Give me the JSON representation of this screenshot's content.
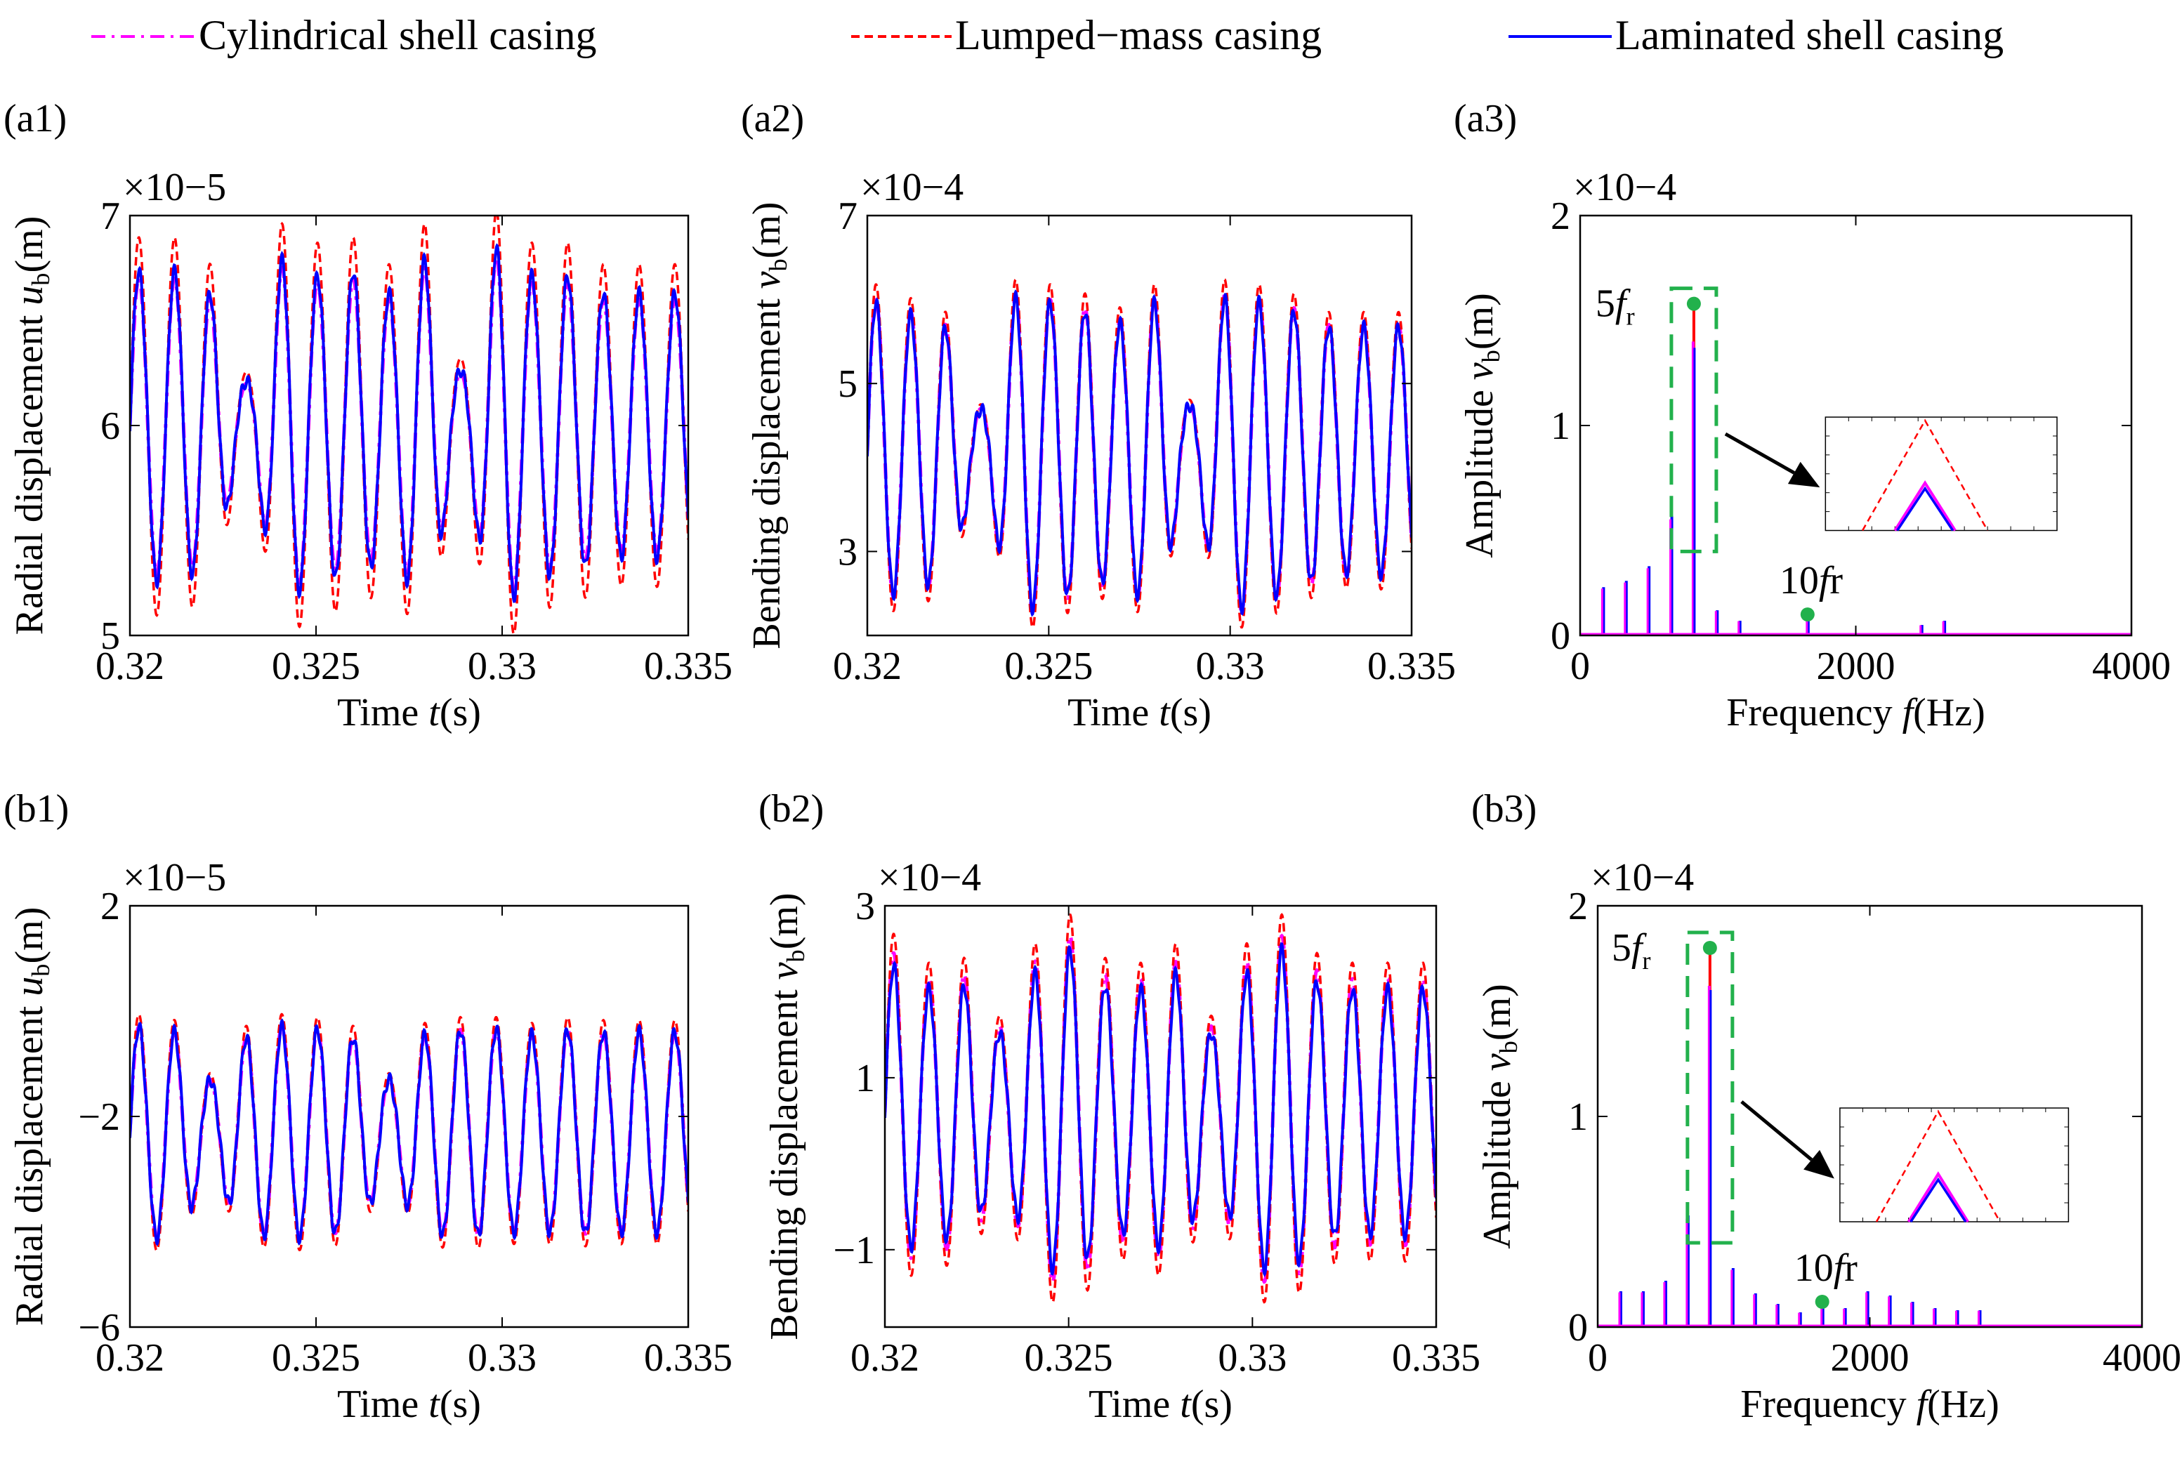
{
  "legend": {
    "items": [
      {
        "label": "Cylindrical shell casing",
        "color": "#ff00ff",
        "dash": "dashdot"
      },
      {
        "label": "Lumped−mass casing",
        "color": "#ff0000",
        "dash": "dashed"
      },
      {
        "label": "Laminated shell casing",
        "color": "#0000ff",
        "dash": "solid"
      }
    ]
  },
  "chart_data": [
    {
      "id": "a1",
      "panel_label": "(a1)",
      "type": "line",
      "xlabel": "Time t(s)",
      "ylabel": "Radial displacement u_b(m)",
      "ylabel_parts": {
        "main": "Radial displacement ",
        "var": "u",
        "sub": "b",
        "unit": "(m)"
      },
      "exponent_label": "×10−5",
      "xlim": [
        0.32,
        0.335
      ],
      "ylim": [
        5,
        7
      ],
      "xticks": [
        0.32,
        0.325,
        0.33,
        0.335
      ],
      "xtick_labels": [
        "0.32",
        "0.325",
        "0.33",
        "0.335"
      ],
      "yticks": [
        5,
        6,
        7
      ],
      "ytick_labels": [
        "5",
        "6",
        "7"
      ],
      "signal": {
        "offset": 6.0,
        "period": 0.00096,
        "phase": 0.00024,
        "amp": [
          0.7,
          0.7,
          0.6,
          0.2,
          0.75,
          0.68,
          0.7,
          0.6,
          0.75,
          0.25,
          0.8,
          0.68,
          0.68,
          0.6
        ],
        "ratios": [
          1.0,
          1.28,
          1.05
        ]
      },
      "series": [
        {
          "name": "Cylindrical shell casing",
          "color": "#ff00ff"
        },
        {
          "name": "Lumped−mass casing",
          "color": "#ff0000"
        },
        {
          "name": "Laminated shell casing",
          "color": "#0000ff"
        }
      ]
    },
    {
      "id": "a2",
      "panel_label": "(a2)",
      "type": "line",
      "xlabel": "Time t(s)",
      "ylabel": "Bending displacement v_b(m)",
      "ylabel_parts": {
        "main": "Bending displacement ",
        "var": "v",
        "sub": "b",
        "unit": "(m)"
      },
      "exponent_label": "×10−4",
      "xlim": [
        0.32,
        0.335
      ],
      "ylim": [
        2,
        7
      ],
      "xticks": [
        0.32,
        0.325,
        0.33,
        0.335
      ],
      "xtick_labels": [
        "0.32",
        "0.325",
        "0.33",
        "0.335"
      ],
      "yticks": [
        3,
        5,
        7
      ],
      "ytick_labels": [
        "3",
        "5",
        "7"
      ],
      "signal": {
        "offset": 4.2,
        "period": 0.00096,
        "phase": 0.00024,
        "amp": [
          1.8,
          1.65,
          1.5,
          0.5,
          1.85,
          1.8,
          1.7,
          1.55,
          1.8,
          0.55,
          1.85,
          1.8,
          1.7,
          1.5
        ],
        "ratios": [
          1.0,
          1.1,
          0.98
        ]
      },
      "series": [
        {
          "name": "Cylindrical shell casing",
          "color": "#ff00ff"
        },
        {
          "name": "Lumped−mass casing",
          "color": "#ff0000"
        },
        {
          "name": "Laminated shell casing",
          "color": "#0000ff"
        }
      ]
    },
    {
      "id": "a3",
      "panel_label": "(a3)",
      "type": "spectrum",
      "xlabel": "Frequency f(Hz)",
      "ylabel": "Amplitude v_b(m)",
      "ylabel_parts": {
        "main": "Amplitude ",
        "var": "v",
        "sub": "b",
        "unit": "(m)"
      },
      "exponent_label": "×10−4",
      "xlim": [
        0,
        4000
      ],
      "ylim": [
        0,
        2
      ],
      "xticks": [
        0,
        2000,
        4000
      ],
      "xtick_labels": [
        "0",
        "2000",
        "4000"
      ],
      "yticks": [
        0,
        1,
        2
      ],
      "ytick_labels": [
        "0",
        "1",
        "2"
      ],
      "peaks": [
        {
          "f": 165,
          "a": 0.23
        },
        {
          "f": 330,
          "a": 0.26
        },
        {
          "f": 495,
          "a": 0.33
        },
        {
          "f": 660,
          "a": 0.57
        },
        {
          "f": 825,
          "a": 1.38
        },
        {
          "f": 990,
          "a": 0.12
        },
        {
          "f": 1155,
          "a": 0.07
        },
        {
          "f": 1650,
          "a": 0.08
        },
        {
          "f": 2475,
          "a": 0.05
        },
        {
          "f": 2640,
          "a": 0.07
        }
      ],
      "main_peak": {
        "f": 825,
        "lumped": 1.58,
        "cylindrical": 1.4,
        "laminated": 1.37
      },
      "annotations": [
        {
          "text": "5f_r",
          "f": 825,
          "a": 1.58,
          "label_offset": [
            -70,
            0
          ]
        },
        {
          "text": "10fr",
          "f": 1650,
          "a": 0.1,
          "label_offset": [
            -25,
            -30
          ]
        }
      ],
      "series": [
        {
          "name": "Cylindrical shell casing",
          "color": "#ff00ff"
        },
        {
          "name": "Lumped−mass casing",
          "color": "#ff0000"
        },
        {
          "name": "Laminated shell casing",
          "color": "#0000ff"
        }
      ]
    },
    {
      "id": "b1",
      "panel_label": "(b1)",
      "type": "line",
      "xlabel": "Time t(s)",
      "ylabel": "Radial displacement u_b(m)",
      "ylabel_parts": {
        "main": "Radial displacement ",
        "var": "u",
        "sub": "b",
        "unit": "(m)"
      },
      "exponent_label": "×10−5",
      "xlim": [
        0.32,
        0.335
      ],
      "ylim": [
        -6,
        2
      ],
      "xticks": [
        0.32,
        0.325,
        0.33,
        0.335
      ],
      "xtick_labels": [
        "0.32",
        "0.325",
        "0.33",
        "0.335"
      ],
      "yticks": [
        -6,
        -2,
        2
      ],
      "ytick_labels": [
        "−6",
        "−2",
        "2"
      ],
      "signal": {
        "offset": -2.3,
        "period": 0.00096,
        "phase": 0.00024,
        "amp": [
          2.0,
          1.9,
          1.0,
          1.8,
          2.0,
          1.95,
          1.8,
          1.0,
          1.85,
          1.95,
          1.95,
          1.85,
          1.95,
          1.9
        ],
        "ratios": [
          1.0,
          1.12,
          1.0
        ]
      },
      "series": [
        {
          "name": "Cylindrical shell casing",
          "color": "#ff00ff"
        },
        {
          "name": "Lumped−mass casing",
          "color": "#ff0000"
        },
        {
          "name": "Laminated shell casing",
          "color": "#0000ff"
        }
      ]
    },
    {
      "id": "b2",
      "panel_label": "(b2)",
      "type": "line",
      "xlabel": "Time t(s)",
      "ylabel": "Bending displacement v_b(m)",
      "ylabel_parts": {
        "main": "Bending displacement ",
        "var": "v",
        "sub": "b",
        "unit": "(m)"
      },
      "exponent_label": "×10−4",
      "xlim": [
        0.32,
        0.335
      ],
      "ylim": [
        -1.9,
        3
      ],
      "xticks": [
        0.32,
        0.325,
        0.33,
        0.335
      ],
      "xtick_labels": [
        "0.32",
        "0.325",
        "0.33",
        "0.335"
      ],
      "yticks": [
        -1,
        1,
        3
      ],
      "ytick_labels": [
        "−1",
        "1",
        "3"
      ],
      "signal": {
        "offset": 0.6,
        "period": 0.00096,
        "phase": 0.00024,
        "amp": [
          1.85,
          1.55,
          1.6,
          1.0,
          1.75,
          2.05,
          1.6,
          1.55,
          1.75,
          1.0,
          1.75,
          2.05,
          1.65,
          1.55
        ],
        "ratios": [
          1.0,
          1.12,
          0.92
        ]
      },
      "series": [
        {
          "name": "Cylindrical shell casing",
          "color": "#ff00ff"
        },
        {
          "name": "Lumped−mass casing",
          "color": "#ff0000"
        },
        {
          "name": "Laminated shell casing",
          "color": "#0000ff"
        }
      ]
    },
    {
      "id": "b3",
      "panel_label": "(b3)",
      "type": "spectrum",
      "xlabel": "Frequency f(Hz)",
      "ylabel": "Amplitude v_b(m)",
      "ylabel_parts": {
        "main": "Amplitude ",
        "var": "v",
        "sub": "b",
        "unit": "(m)"
      },
      "exponent_label": "×10−4",
      "xlim": [
        0,
        4000
      ],
      "ylim": [
        0,
        2
      ],
      "xticks": [
        0,
        2000,
        4000
      ],
      "xtick_labels": [
        "0",
        "2000",
        "4000"
      ],
      "yticks": [
        0,
        1,
        2
      ],
      "ytick_labels": [
        "0",
        "1",
        "2"
      ],
      "peaks": [
        {
          "f": 165,
          "a": 0.17
        },
        {
          "f": 330,
          "a": 0.17
        },
        {
          "f": 495,
          "a": 0.22
        },
        {
          "f": 660,
          "a": 0.53
        },
        {
          "f": 825,
          "a": 1.62
        },
        {
          "f": 990,
          "a": 0.28
        },
        {
          "f": 1155,
          "a": 0.16
        },
        {
          "f": 1320,
          "a": 0.11
        },
        {
          "f": 1485,
          "a": 0.07
        },
        {
          "f": 1650,
          "a": 0.13
        },
        {
          "f": 1815,
          "a": 0.09
        },
        {
          "f": 1980,
          "a": 0.17
        },
        {
          "f": 2145,
          "a": 0.15
        },
        {
          "f": 2310,
          "a": 0.12
        },
        {
          "f": 2475,
          "a": 0.09
        },
        {
          "f": 2640,
          "a": 0.08
        },
        {
          "f": 2805,
          "a": 0.08
        }
      ],
      "main_peak": {
        "f": 825,
        "lumped": 1.8,
        "cylindrical": 1.62,
        "laminated": 1.6
      },
      "annotations": [
        {
          "text": "5f_r",
          "f": 825,
          "a": 1.8,
          "label_offset": [
            -70,
            0
          ]
        },
        {
          "text": "10fr",
          "f": 1650,
          "a": 0.12,
          "label_offset": [
            -25,
            -30
          ]
        }
      ],
      "series": [
        {
          "name": "Cylindrical shell casing",
          "color": "#ff00ff"
        },
        {
          "name": "Lumped−mass casing",
          "color": "#ff0000"
        },
        {
          "name": "Laminated shell casing",
          "color": "#0000ff"
        }
      ]
    }
  ]
}
